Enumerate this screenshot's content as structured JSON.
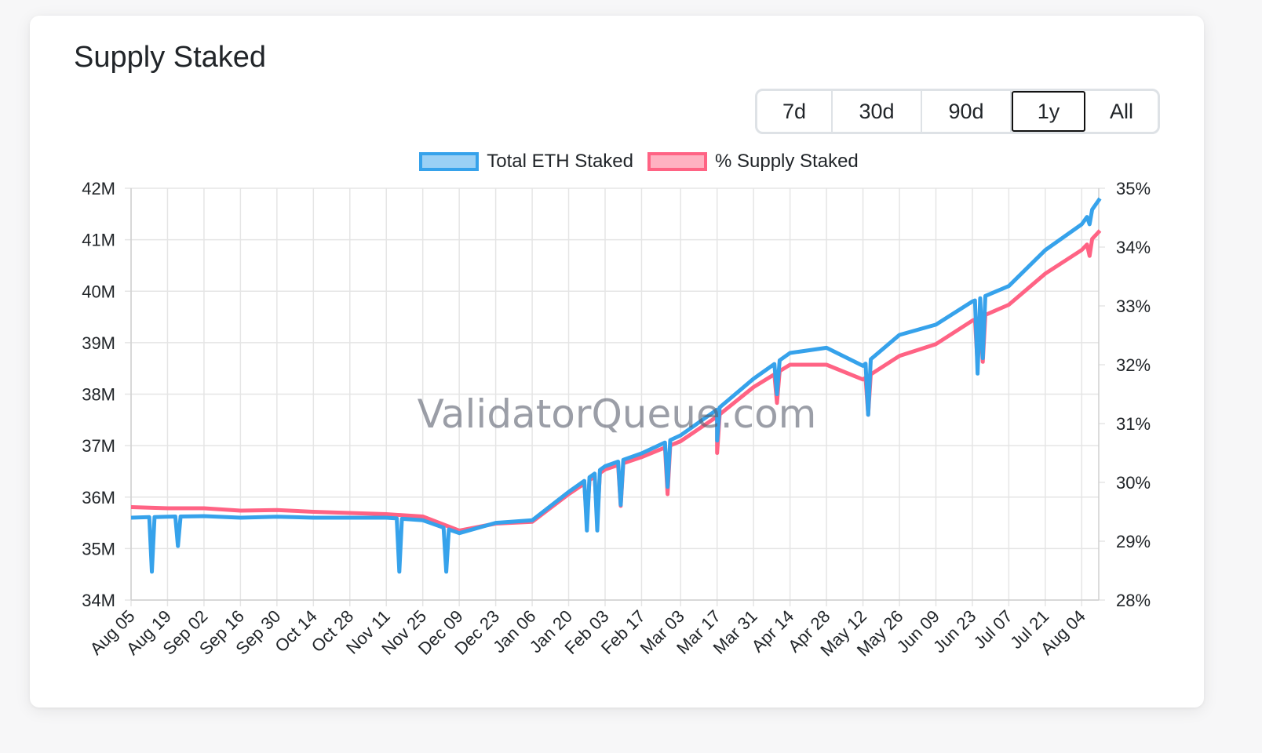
{
  "card": {
    "title": "Supply Staked",
    "ranges": [
      "7d",
      "30d",
      "90d",
      "1y",
      "All"
    ],
    "active_range": "1y"
  },
  "watermark": "ValidatorQueue.com",
  "colors": {
    "eth": "#36a2eb",
    "eth_fill": "#9ad0f5",
    "pct": "#ff6384",
    "pct_fill": "#ffb1c1",
    "grid": "#e5e5e5"
  },
  "chart_data": {
    "type": "line",
    "title": "",
    "legend": [
      "Total ETH Staked",
      "% Supply Staked"
    ],
    "legend_position": "top",
    "grid": true,
    "y_left": {
      "range": [
        34000000,
        42000000
      ],
      "ticks": [
        "34M",
        "35M",
        "36M",
        "37M",
        "38M",
        "39M",
        "40M",
        "41M",
        "42M"
      ]
    },
    "y_right": {
      "range": [
        28,
        35
      ],
      "ticks": [
        "28%",
        "29%",
        "30%",
        "31%",
        "32%",
        "33%",
        "34%",
        "35%"
      ]
    },
    "x_ticks": [
      "Aug 05",
      "Aug 19",
      "Sep 02",
      "Sep 16",
      "Sep 30",
      "Oct 14",
      "Oct 28",
      "Nov 11",
      "Nov 25",
      "Dec 09",
      "Dec 23",
      "Jan 06",
      "Jan 20",
      "Feb 03",
      "Feb 17",
      "Mar 03",
      "Mar 17",
      "Mar 31",
      "Apr 14",
      "Apr 28",
      "May 12",
      "May 26",
      "Jun 09",
      "Jun 23",
      "Jul 07",
      "Jul 21",
      "Aug 04"
    ],
    "series": [
      {
        "name": "Total ETH Staked",
        "axis": "left",
        "points": [
          [
            "Aug 05",
            35600000
          ],
          [
            "Aug 19",
            35620000
          ],
          [
            "Sep 02",
            35630000
          ],
          [
            "Sep 16",
            35600000
          ],
          [
            "Sep 30",
            35620000
          ],
          [
            "Oct 14",
            35600000
          ],
          [
            "Oct 28",
            35600000
          ],
          [
            "Nov 11",
            35600000
          ],
          [
            "Nov 25",
            35550000
          ],
          [
            "Dec 09",
            35300000
          ],
          [
            "Dec 23",
            35500000
          ],
          [
            "Jan 06",
            35550000
          ],
          [
            "Jan 20",
            36100000
          ],
          [
            "Feb 03",
            36600000
          ],
          [
            "Feb 17",
            36850000
          ],
          [
            "Mar 03",
            37200000
          ],
          [
            "Mar 17",
            37700000
          ],
          [
            "Mar 31",
            38300000
          ],
          [
            "Apr 14",
            38800000
          ],
          [
            "Apr 28",
            38900000
          ],
          [
            "May 12",
            38550000
          ],
          [
            "May 26",
            39150000
          ],
          [
            "Jun 09",
            39350000
          ],
          [
            "Jun 23",
            39800000
          ],
          [
            "Jul 07",
            40100000
          ],
          [
            "Jul 21",
            40800000
          ],
          [
            "Aug 04",
            41300000
          ],
          [
            "Aug 11",
            41800000
          ]
        ]
      },
      {
        "name": "% Supply Staked",
        "axis": "right",
        "points": [
          [
            "Aug 05",
            29.58
          ],
          [
            "Aug 19",
            29.56
          ],
          [
            "Sep 02",
            29.56
          ],
          [
            "Sep 16",
            29.52
          ],
          [
            "Sep 30",
            29.53
          ],
          [
            "Oct 14",
            29.5
          ],
          [
            "Oct 28",
            29.48
          ],
          [
            "Nov 11",
            29.46
          ],
          [
            "Nov 25",
            29.42
          ],
          [
            "Dec 09",
            29.18
          ],
          [
            "Dec 23",
            29.3
          ],
          [
            "Jan 06",
            29.33
          ],
          [
            "Jan 20",
            29.8
          ],
          [
            "Feb 03",
            30.22
          ],
          [
            "Feb 17",
            30.43
          ],
          [
            "Mar 03",
            30.7
          ],
          [
            "Mar 17",
            31.12
          ],
          [
            "Mar 31",
            31.62
          ],
          [
            "Apr 14",
            32.0
          ],
          [
            "Apr 28",
            32.0
          ],
          [
            "May 12",
            31.75
          ],
          [
            "May 26",
            32.15
          ],
          [
            "Jun 09",
            32.35
          ],
          [
            "Jun 23",
            32.75
          ],
          [
            "Jul 07",
            33.02
          ],
          [
            "Jul 21",
            33.55
          ],
          [
            "Aug 04",
            33.95
          ],
          [
            "Aug 11",
            34.28
          ]
        ]
      }
    ],
    "dips": [
      {
        "x": "Aug 13",
        "eth": 34550000
      },
      {
        "x": "Aug 23",
        "eth": 35050000
      },
      {
        "x": "Nov 16",
        "eth": 34550000
      },
      {
        "x": "Dec 04",
        "eth": 34550000
      },
      {
        "x": "Jan 27",
        "eth": 35350000,
        "pct": 29.33
      },
      {
        "x": "Jan 31",
        "eth": 35350000,
        "pct": 29.33
      },
      {
        "x": "Feb 09",
        "eth": 35850000,
        "pct": 29.6
      },
      {
        "x": "Feb 27",
        "eth": 36200000,
        "pct": 29.8
      },
      {
        "x": "Mar 17",
        "eth": 37100000,
        "pct": 30.5
      },
      {
        "x": "Apr 09",
        "eth": 38000000,
        "pct": 31.35
      },
      {
        "x": "May 14",
        "eth": 37600000,
        "pct": 31.15
      },
      {
        "x": "Jun 25",
        "eth": 38400000,
        "pct": 32.0
      },
      {
        "x": "Jun 27",
        "eth": 38700000,
        "pct": 32.05
      },
      {
        "x": "Aug 07",
        "eth": 41300000,
        "pct": 33.85
      }
    ]
  }
}
